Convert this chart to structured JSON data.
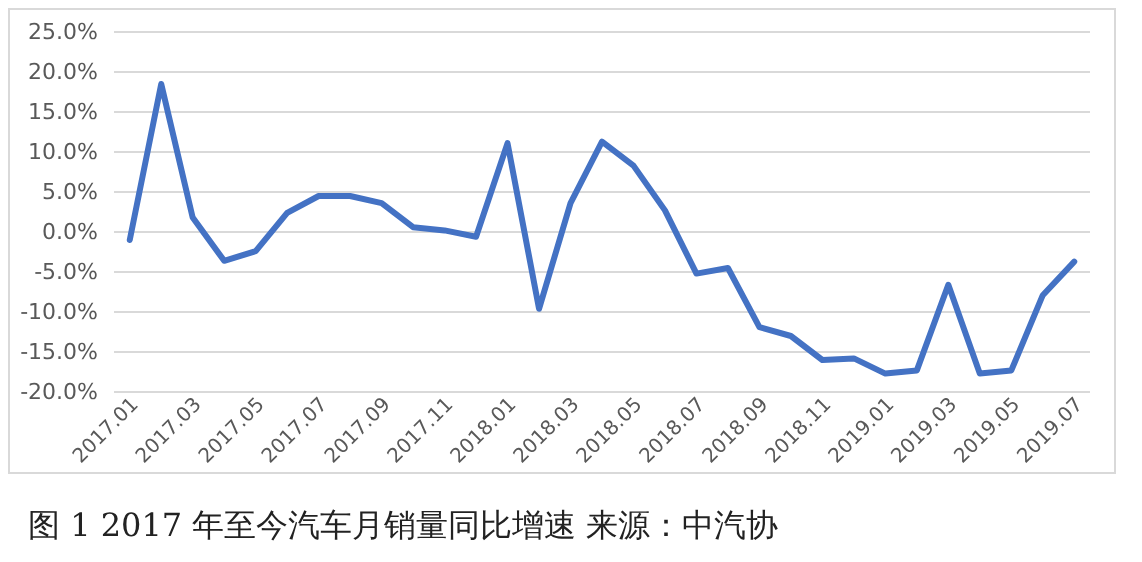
{
  "chart_data": {
    "type": "line",
    "categories": [
      "2017.01",
      null,
      "2017.03",
      null,
      "2017.05",
      null,
      "2017.07",
      null,
      "2017.09",
      null,
      "2017.11",
      null,
      "2018.01",
      null,
      "2018.03",
      null,
      "2018.05",
      null,
      "2018.07",
      null,
      "2018.09",
      null,
      "2018.11",
      null,
      "2019.01",
      null,
      "2019.03",
      null,
      "2019.05",
      null,
      "2019.07"
    ],
    "series": [
      {
        "color": "#4472c4",
        "values": [
          -1.0,
          18.5,
          1.8,
          -3.6,
          -2.4,
          2.4,
          4.5,
          4.5,
          3.6,
          0.6,
          0.2,
          -0.6,
          11.1,
          -9.6,
          3.6,
          11.3,
          8.3,
          2.7,
          -5.2,
          -4.5,
          -11.9,
          -13.0,
          -16.0,
          -15.8,
          -17.7,
          -17.3,
          -6.6,
          -17.7,
          -17.3,
          -7.9,
          -3.7
        ]
      }
    ],
    "ylim": [
      -20,
      25
    ],
    "yticks": [
      {
        "value": 25,
        "label": "25.0%"
      },
      {
        "value": 20,
        "label": "20.0%"
      },
      {
        "value": 15,
        "label": "15.0%"
      },
      {
        "value": 10,
        "label": "10.0%"
      },
      {
        "value": 5,
        "label": "5.0%"
      },
      {
        "value": 0,
        "label": "0.0%"
      },
      {
        "value": -5,
        "label": "-5.0%"
      },
      {
        "value": -10,
        "label": "-10.0%"
      },
      {
        "value": -15,
        "label": "-15.0%"
      },
      {
        "value": -20,
        "label": "-20.0%"
      }
    ],
    "grid": "y",
    "marker": "none",
    "line_style": "solid",
    "annotations": [
      "图 1 2017 年至今汽车月销量同比增速 来源：中汽协"
    ]
  }
}
